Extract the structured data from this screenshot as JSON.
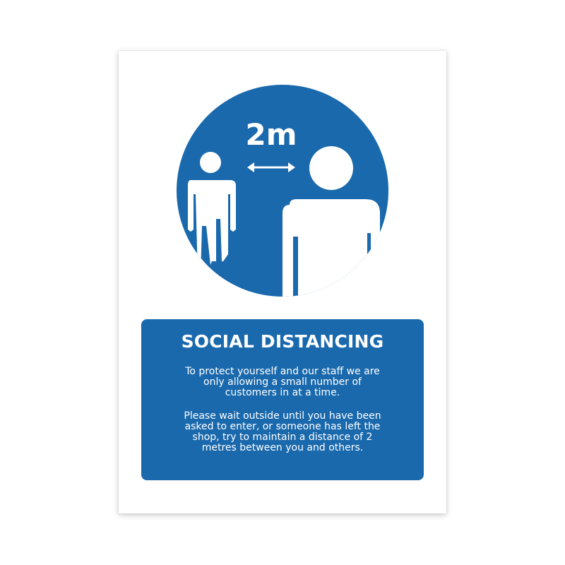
{
  "colors": {
    "sign_blue": "#1a69ad",
    "figure_white": "#ffffff",
    "background": "#ffffff"
  },
  "symbol": {
    "distance_label": "2m",
    "arrow_icon": "double-headed-arrow-icon",
    "figure_icon": "person-icon"
  },
  "panel": {
    "title": "SOCIAL DISTANCING",
    "paragraph_1": "To protect yourself and our staff we are\nonly allowing a small number of\ncustomers in at a time.",
    "paragraph_2": "Please wait outside until you have been\nasked to enter, or someone has left the\nshop, try to maintain a distance of 2\nmetres between you and others."
  }
}
